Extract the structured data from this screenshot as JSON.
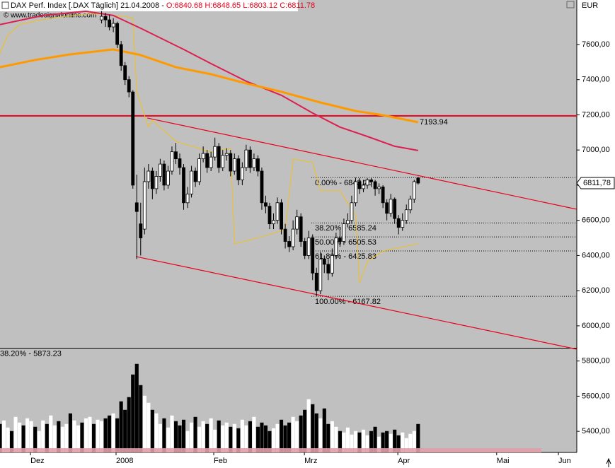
{
  "chart_data": {
    "type": "candlestick",
    "header": {
      "name": "DAX Perf. Index [.DAX Täglich] 21.04.2008 -",
      "ohlc": [
        "O:6840.68",
        "H:6848.65",
        "L:6803.12",
        "C:6811.78"
      ]
    },
    "copyright": "© www.tradesignalonline.com",
    "currency": "EUR",
    "xlim": [
      0,
      147.6
    ],
    "xticks": [
      {
        "value": 7.8,
        "label": "Dez"
      },
      {
        "value": 29.7,
        "label": "2008"
      },
      {
        "value": 54.7,
        "label": "Feb"
      },
      {
        "value": 77.9,
        "label": "Mrz"
      },
      {
        "value": 101.8,
        "label": "Apr"
      },
      {
        "value": 127.1,
        "label": "Mai"
      },
      {
        "value": 142.9,
        "label": "Jun"
      }
    ],
    "ylim": [
      5280,
      7853
    ],
    "yticks": [
      {
        "value": 5400,
        "label": "5400,00"
      },
      {
        "value": 5600,
        "label": "5600,00"
      },
      {
        "value": 5800,
        "label": "5800,00"
      },
      {
        "value": 6000,
        "label": "6000,00"
      },
      {
        "value": 6200,
        "label": "6200,00"
      },
      {
        "value": 6400,
        "label": "6400,00"
      },
      {
        "value": 6600,
        "label": "6600,00"
      },
      {
        "value": 6800,
        "label": "6800,00"
      },
      {
        "value": 7000,
        "label": "7000,00"
      },
      {
        "value": 7200,
        "label": "7200,00"
      },
      {
        "value": 7400,
        "label": "7400,00"
      },
      {
        "value": 7600,
        "label": "7600,00"
      }
    ],
    "last_price": {
      "value": 6811.78,
      "label": "6811,78"
    },
    "resistance": 7193.94,
    "resistance_color": "#e8001c",
    "fib_levels": [
      {
        "label": "0.00% - 6843.25",
        "value": 6843.25
      },
      {
        "label": "38.20% - 6585.24",
        "value": 6585.24
      },
      {
        "label": "50.00% - 6505.53",
        "value": 6505.53
      },
      {
        "label": "61.80% - 6425.83",
        "value": 6425.83
      },
      {
        "label": "100.00% - 6167.82",
        "value": 6167.82
      }
    ],
    "fib_extension": {
      "label": "38.20% - 5873.23",
      "value": 5873.23
    },
    "trendlines": [
      {
        "color": "#e8001c",
        "x": [
          37.7,
          147.6
        ],
        "values": [
          7182,
          6663
        ]
      },
      {
        "color": "#e8001c",
        "x": [
          34.8,
          147.6
        ],
        "values": [
          6394,
          5867
        ]
      }
    ],
    "series": [
      {
        "color": "#f0c020",
        "width": 1,
        "x": [
          0,
          2,
          5,
          9,
          14,
          22,
          26,
          34,
          35,
          38,
          39,
          45,
          54,
          59,
          60,
          67,
          73,
          75,
          80,
          81,
          82,
          87,
          91,
          92,
          94,
          98,
          107
        ],
        "values": [
          7552,
          7652,
          7713,
          7733,
          7753,
          7773,
          7773,
          7753,
          7331,
          7130,
          7170,
          7049,
          6989,
          7009,
          6466,
          6507,
          6547,
          6949,
          6929,
          6848,
          6768,
          6768,
          6627,
          6245,
          6366,
          6426,
          6466
        ]
      },
      {
        "color": "#dc1e50",
        "width": 2,
        "x": [
          0,
          11,
          22,
          29,
          36,
          47,
          54,
          63,
          72,
          80,
          87,
          94,
          101,
          107
        ],
        "values": [
          7713,
          7765,
          7789,
          7765,
          7692,
          7572,
          7491,
          7391,
          7311,
          7210,
          7130,
          7077,
          7021,
          6997
        ]
      },
      {
        "color": "#ff9900",
        "width": 3,
        "x": [
          0,
          9,
          18,
          29,
          36,
          45,
          54,
          63,
          72,
          82,
          91,
          98,
          107
        ],
        "values": [
          7471,
          7512,
          7544,
          7572,
          7540,
          7471,
          7431,
          7379,
          7331,
          7270,
          7222,
          7198,
          7158
        ]
      }
    ],
    "candles": {
      "x": [
        26,
        27,
        28,
        29,
        30,
        31,
        32,
        33,
        34,
        35,
        36,
        37,
        38,
        39,
        40,
        41,
        42,
        43,
        44,
        45,
        46,
        47,
        48,
        49,
        50,
        51,
        52,
        53,
        54,
        55,
        56,
        57,
        58,
        59,
        60,
        61,
        62,
        63,
        64,
        65,
        66,
        67,
        68,
        69,
        70,
        71,
        72,
        73,
        74,
        75,
        76,
        77,
        78,
        79,
        80,
        81,
        82,
        83,
        84,
        85,
        86,
        87,
        88,
        89,
        90,
        91,
        92,
        93,
        94,
        95,
        96,
        97,
        98,
        99,
        100,
        101,
        102,
        103,
        104,
        105,
        106,
        107
      ],
      "open": [
        7740,
        7760,
        7740,
        7700,
        7720,
        7600,
        7480,
        7400,
        7330,
        6700,
        6580,
        6550,
        6820,
        6880,
        6780,
        6850,
        6920,
        6800,
        6880,
        6990,
        6950,
        6900,
        6700,
        6750,
        6880,
        6820,
        6950,
        6980,
        6900,
        6960,
        7020,
        6900,
        6970,
        6980,
        6880,
        6950,
        6830,
        6900,
        7000,
        6900,
        6950,
        6880,
        6700,
        6680,
        6580,
        6600,
        6700,
        6550,
        6480,
        6450,
        6550,
        6620,
        6480,
        6400,
        6500,
        6300,
        6200,
        6380,
        6350,
        6300,
        6400,
        6500,
        6480,
        6580,
        6600,
        6700,
        6820,
        6780,
        6800,
        6830,
        6820,
        6780,
        6790,
        6700,
        6640,
        6720,
        6610,
        6560,
        6600,
        6660,
        6720,
        6840.68
      ],
      "high": [
        7790,
        7780,
        7770,
        7750,
        7730,
        7620,
        7500,
        7420,
        7340,
        6860,
        6700,
        6900,
        6920,
        6900,
        6880,
        6950,
        6940,
        6910,
        7020,
        7040,
        6980,
        6920,
        6790,
        6910,
        6900,
        6980,
        7020,
        7000,
        6990,
        7070,
        7040,
        7000,
        7010,
        7000,
        6980,
        6970,
        6930,
        7030,
        7020,
        6980,
        6970,
        6900,
        6740,
        6700,
        6640,
        6730,
        6720,
        6580,
        6510,
        6600,
        6660,
        6640,
        6500,
        6540,
        6520,
        6330,
        6420,
        6400,
        6380,
        6440,
        6530,
        6540,
        6610,
        6640,
        6740,
        6843.25,
        6840,
        6830,
        6840,
        6840,
        6830,
        6810,
        6800,
        6720,
        6750,
        6730,
        6630,
        6640,
        6690,
        6740,
        6830,
        6848.65
      ],
      "low": [
        7720,
        7700,
        7680,
        7670,
        7580,
        7450,
        7370,
        7300,
        6780,
        6380,
        6400,
        6520,
        6780,
        6720,
        6750,
        6820,
        6770,
        6780,
        6860,
        6920,
        6860,
        6660,
        6670,
        6730,
        6790,
        6800,
        6930,
        6870,
        6880,
        6940,
        6870,
        6880,
        6940,
        6850,
        6860,
        6800,
        6800,
        6880,
        6870,
        6880,
        6850,
        6660,
        6640,
        6550,
        6550,
        6580,
        6520,
        6440,
        6420,
        6430,
        6520,
        6450,
        6380,
        6380,
        6260,
        6167.82,
        6180,
        6300,
        6260,
        6280,
        6380,
        6450,
        6460,
        6560,
        6580,
        6680,
        6750,
        6760,
        6780,
        6790,
        6740,
        6750,
        6670,
        6600,
        6620,
        6580,
        6520,
        6540,
        6580,
        6640,
        6700,
        6803.12
      ],
      "close": [
        7760,
        7740,
        7700,
        7720,
        7600,
        7480,
        7400,
        7330,
        6800,
        6650,
        6500,
        6820,
        6880,
        6780,
        6850,
        6920,
        6800,
        6880,
        6990,
        6950,
        6900,
        6700,
        6750,
        6880,
        6820,
        6950,
        6980,
        6900,
        6960,
        7020,
        6900,
        6970,
        6980,
        6880,
        6950,
        6830,
        6900,
        7000,
        6900,
        6950,
        6880,
        6700,
        6680,
        6580,
        6600,
        6700,
        6550,
        6480,
        6450,
        6550,
        6620,
        6480,
        6400,
        6500,
        6300,
        6200,
        6380,
        6350,
        6300,
        6400,
        6500,
        6480,
        6580,
        6600,
        6700,
        6820,
        6780,
        6800,
        6830,
        6820,
        6780,
        6790,
        6700,
        6640,
        6720,
        6610,
        6560,
        6600,
        6660,
        6720,
        6820,
        6811.78
      ]
    },
    "volume": {
      "ylim": [
        0,
        150
      ],
      "x": [
        0,
        1,
        2,
        3,
        4,
        5,
        6,
        7,
        8,
        9,
        10,
        11,
        12,
        13,
        14,
        15,
        16,
        17,
        18,
        19,
        20,
        21,
        22,
        23,
        24,
        25,
        26,
        27,
        28,
        29,
        30,
        31,
        32,
        33,
        34,
        35,
        36,
        37,
        38,
        39,
        40,
        41,
        42,
        43,
        44,
        45,
        46,
        47,
        48,
        49,
        50,
        51,
        52,
        53,
        54,
        55,
        56,
        57,
        58,
        59,
        60,
        61,
        62,
        63,
        64,
        65,
        66,
        67,
        68,
        69,
        70,
        71,
        72,
        73,
        74,
        75,
        76,
        77,
        78,
        79,
        80,
        81,
        82,
        83,
        84,
        85,
        86,
        87,
        88,
        89,
        90,
        91,
        92,
        93,
        94,
        95,
        96,
        97,
        98,
        99,
        100,
        101,
        102,
        103,
        104,
        105,
        106,
        107
      ],
      "values": [
        40,
        45,
        35,
        30,
        50,
        42,
        38,
        48,
        44,
        36,
        30,
        45,
        40,
        52,
        38,
        44,
        36,
        40,
        55,
        45,
        38,
        42,
        48,
        50,
        40,
        46,
        44,
        48,
        52,
        55,
        48,
        72,
        60,
        78,
        110,
        125,
        95,
        80,
        70,
        60,
        55,
        40,
        48,
        35,
        52,
        44,
        38,
        46,
        30,
        42,
        50,
        36,
        44,
        40,
        48,
        32,
        45,
        38,
        42,
        36,
        40,
        34,
        46,
        38,
        44,
        50,
        36,
        42,
        38,
        30,
        34,
        40,
        46,
        38,
        42,
        50,
        44,
        52,
        60,
        75,
        68,
        55,
        48,
        62,
        40,
        44,
        36,
        30,
        28,
        35,
        25,
        30,
        28,
        32,
        24,
        30,
        36,
        22,
        28,
        30,
        26,
        32,
        24,
        28,
        20,
        26,
        30,
        40
      ]
    }
  }
}
